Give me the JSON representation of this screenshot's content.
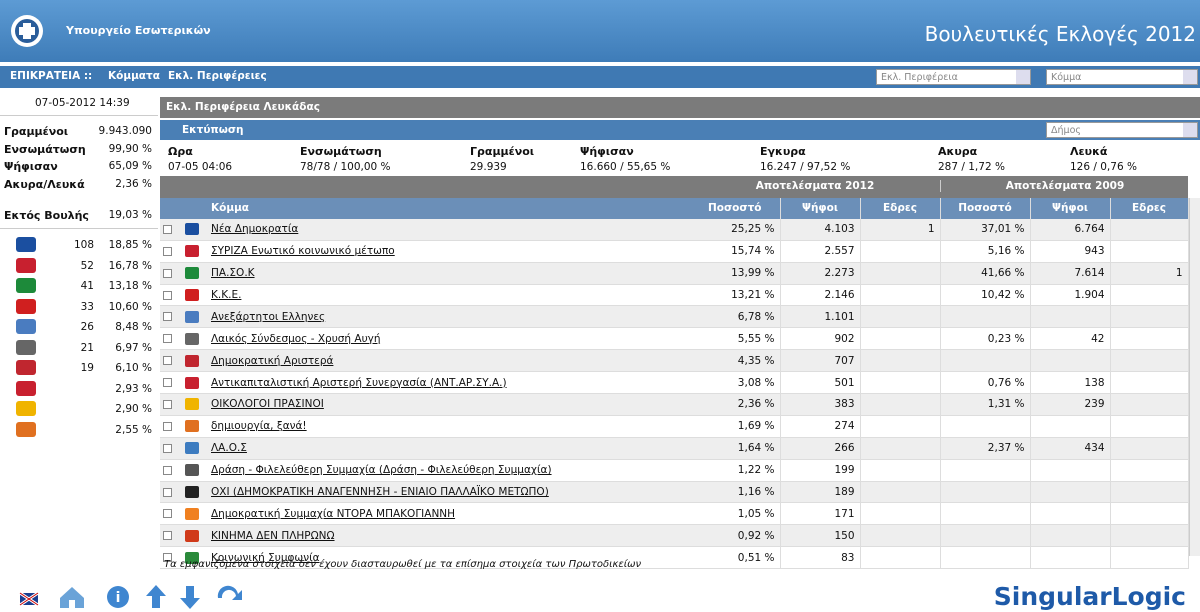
{
  "header": {
    "ministry": "Υπουργείο Εσωτερικών",
    "title": "Βουλευτικές Εκλογές 2012"
  },
  "nav": {
    "items": [
      "ΕΠΙΚΡΑΤΕΙΑ ::",
      "Κόμματα",
      "Εκλ. Περιφέρειες"
    ],
    "selects": [
      "Εκλ. Περιφέρεια",
      "Κόμμα"
    ]
  },
  "sidebar": {
    "datetime": "07-05-2012 14:39",
    "stats": [
      [
        "Γραμμένοι",
        "9.943.090"
      ],
      [
        "Ενσωμάτωση",
        "99,90 %"
      ],
      [
        "Ψήφισαν",
        "65,09 %"
      ],
      [
        "Ακυρα/Λευκά",
        "2,36 %"
      ]
    ],
    "outside": [
      "Εκτός Βουλής",
      "19,03 %"
    ],
    "parties": [
      {
        "seats": "108",
        "pct": "18,85 %"
      },
      {
        "seats": "52",
        "pct": "16,78 %"
      },
      {
        "seats": "41",
        "pct": "13,18 %"
      },
      {
        "seats": "33",
        "pct": "10,60 %"
      },
      {
        "seats": "26",
        "pct": "8,48 %"
      },
      {
        "seats": "21",
        "pct": "6,97 %"
      },
      {
        "seats": "19",
        "pct": "6,10 %"
      },
      {
        "seats": null,
        "pct": "2,93 %"
      },
      {
        "seats": null,
        "pct": "2,90 %"
      },
      {
        "seats": null,
        "pct": "2,55 %"
      }
    ]
  },
  "main": {
    "region": "Εκλ. Περιφέρεια Λευκάδας",
    "print": "Εκτύπωση",
    "municipality": "Δήμος",
    "summary": {
      "headers": [
        "Ωρα",
        "Ενσωμάτωση",
        "Γραμμένοι",
        "Ψήφισαν",
        "Εγκυρα",
        "Ακυρα",
        "Λευκά"
      ],
      "values": [
        "07-05 04:06",
        "78/78 / 100,00 %",
        "29.939",
        "16.660 / 55,65 %",
        "16.247 / 97,52 %",
        "287 / 1,72 %",
        "126 / 0,76 %"
      ]
    },
    "table": {
      "groups": [
        "Αποτελέσματα 2012",
        "Αποτελέσματα 2009"
      ],
      "columns": [
        "Κόμμα",
        "Ποσοστό",
        "Ψήφοι",
        "Εδρες",
        "Ποσοστό",
        "Ψήφοι",
        "Εδρες"
      ],
      "rows": [
        [
          "Νέα Δημοκρατία",
          "25,25 %",
          "4.103",
          "1",
          "37,01 %",
          "6.764",
          null
        ],
        [
          "ΣΥΡΙΖΑ Ενωτικό κοινωνικό μέτωπο",
          "15,74 %",
          "2.557",
          null,
          "5,16 %",
          "943",
          null
        ],
        [
          "ΠΑ.ΣΟ.Κ",
          "13,99 %",
          "2.273",
          null,
          "41,66 %",
          "7.614",
          "1"
        ],
        [
          "Κ.Κ.Ε.",
          "13,21 %",
          "2.146",
          null,
          "10,42 %",
          "1.904",
          null
        ],
        [
          "Ανεξάρτητοι Ελληνες",
          "6,78 %",
          "1.101",
          null,
          null,
          null,
          null
        ],
        [
          "Λαικός Σύνδεσμος - Χρυσή Αυγή",
          "5,55 %",
          "902",
          null,
          "0,23 %",
          "42",
          null
        ],
        [
          "Δημοκρατική Αριστερά",
          "4,35 %",
          "707",
          null,
          null,
          null,
          null
        ],
        [
          "Αντικαπιταλιστική Αριστερή Συνεργασία (ΑΝΤ.ΑΡ.ΣΥ.Α.)",
          "3,08 %",
          "501",
          null,
          "0,76 %",
          "138",
          null
        ],
        [
          "ΟΙΚΟΛΟΓΟΙ ΠΡΑΣΙΝΟΙ",
          "2,36 %",
          "383",
          null,
          "1,31 %",
          "239",
          null
        ],
        [
          "δημιουργία, ξανά!",
          "1,69 %",
          "274",
          null,
          null,
          null,
          null
        ],
        [
          "ΛΑ.Ο.Σ",
          "1,64 %",
          "266",
          null,
          "2,37 %",
          "434",
          null
        ],
        [
          "Δράση - Φιλελεύθερη Συμμαχία (Δράση - Φιλελεύθερη Συμμαχία)",
          "1,22 %",
          "199",
          null,
          null,
          null,
          null
        ],
        [
          "ΟΧΙ (ΔΗΜΟΚΡΑΤΙΚΗ ΑΝΑΓΕΝΝΗΣΗ - ΕΝΙΑΙΟ ΠΑΛΛΑΪΚΟ ΜΕΤΩΠΟ)",
          "1,16 %",
          "189",
          null,
          null,
          null,
          null
        ],
        [
          "Δημοκρατική Συμμαχία ΝΤΟΡΑ ΜΠΑΚΟΓΙΑΝΝΗ",
          "1,05 %",
          "171",
          null,
          null,
          null,
          null
        ],
        [
          "ΚΙΝΗΜΑ ΔΕΝ ΠΛΗΡΩΝΩ",
          "0,92 %",
          "150",
          null,
          null,
          null,
          null
        ],
        [
          "Κοινωνική Συμφωνία",
          "0,51 %",
          "83",
          null,
          null,
          null,
          null
        ]
      ]
    },
    "footnote": "Τα εμφανιζόμενα στοιχεία δεν έχουν διασταυρωθεί με τα επίσημα στοιχεία των Πρωτοδικείων"
  },
  "brand": "SingularLogic"
}
